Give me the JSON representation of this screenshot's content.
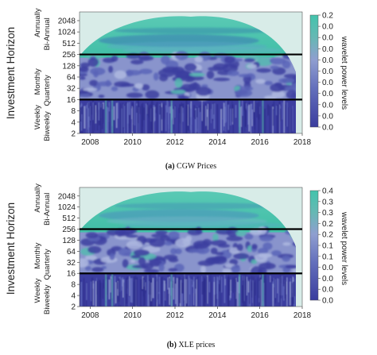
{
  "colors": {
    "power_low": "#3c3ea0",
    "power_mid": "#7a86c8",
    "power_high": "#46c0ac",
    "coi_shade": "#d8ece8",
    "band_line": "#000000"
  },
  "chart_data": [
    {
      "type": "heatmap",
      "caption": "(a) CGW Prices",
      "caption_prefix": "(a)",
      "caption_text": "CGW Prices",
      "ylabel": "Investment Horizon",
      "colorbar_label": "wavelet power levels",
      "x_ticks": [
        "2008",
        "2010",
        "2012",
        "2014",
        "2016",
        "2018"
      ],
      "x_values": [
        2008,
        2010,
        2012,
        2014,
        2016,
        2018
      ],
      "xlim": [
        2007.5,
        2018.0
      ],
      "y_scale": "log2",
      "y_ticks": [
        "2048",
        "1024",
        "512",
        "256",
        "128",
        "64",
        "32",
        "16",
        "8",
        "4",
        "2"
      ],
      "y_values": [
        2048,
        1024,
        512,
        256,
        128,
        64,
        32,
        16,
        8,
        4,
        2
      ],
      "ylim": [
        2,
        3500
      ],
      "horizon_labels": [
        {
          "text": "Annually",
          "period": 1800
        },
        {
          "text": "Bi-Annual",
          "period": 900
        },
        {
          "text": "Monthly",
          "period": 48
        },
        {
          "text": "Quarterly",
          "period": 28
        },
        {
          "text": "Weekly",
          "period": 5.4
        },
        {
          "text": "Biweekly",
          "period": 3.1
        }
      ],
      "band_lines": [
        256,
        16
      ],
      "colorbar_ticks": [
        "0.2",
        "0.0",
        "0.0",
        "0.0",
        "0.0",
        "0.0",
        "0.0",
        "0.0",
        "0.0",
        "0.0",
        "0.0"
      ]
    },
    {
      "type": "heatmap",
      "caption": "(b) XLE prices",
      "caption_prefix": "(b)",
      "caption_text": "XLE prices",
      "ylabel": "Investment Horizon",
      "colorbar_label": "wavelet power levels",
      "x_ticks": [
        "2008",
        "2010",
        "2012",
        "2014",
        "2016",
        "2018"
      ],
      "x_values": [
        2008,
        2010,
        2012,
        2014,
        2016,
        2018
      ],
      "xlim": [
        2007.5,
        2018.0
      ],
      "y_scale": "log2",
      "y_ticks": [
        "2048",
        "1024",
        "512",
        "256",
        "128",
        "64",
        "32",
        "16",
        "8",
        "4",
        "2"
      ],
      "y_values": [
        2048,
        1024,
        512,
        256,
        128,
        64,
        32,
        16,
        8,
        4,
        2
      ],
      "ylim": [
        2,
        3500
      ],
      "horizon_labels": [
        {
          "text": "Annually",
          "period": 1800
        },
        {
          "text": "Bi-Annual",
          "period": 900
        },
        {
          "text": "Monthly",
          "period": 48
        },
        {
          "text": "Quarterly",
          "period": 28
        },
        {
          "text": "Weekly",
          "period": 5.4
        },
        {
          "text": "Biweekly",
          "period": 3.1
        }
      ],
      "band_lines": [
        256,
        16
      ],
      "colorbar_ticks": [
        "0.4",
        "0.3",
        "0.3",
        "0.2",
        "0.2",
        "0.1",
        "0.1",
        "0.0",
        "0.0",
        "0.0",
        "0.0"
      ]
    }
  ]
}
